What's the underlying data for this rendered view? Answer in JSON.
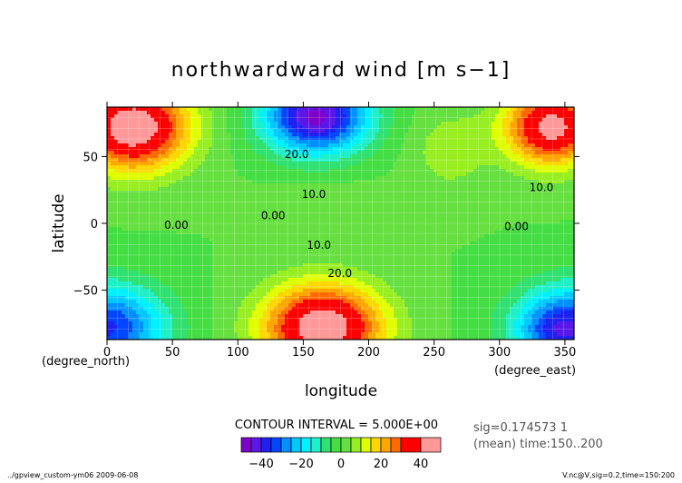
{
  "chart_data": {
    "type": "heatmap",
    "title": "northwardward wind [m s−1]",
    "xlabel": "longitude",
    "ylabel": "latitude",
    "x_unit": "(degree_east)",
    "y_unit": "(degree_north)",
    "xlim": [
      0,
      357
    ],
    "ylim": [
      -87,
      87
    ],
    "x_ticks": [
      0,
      50,
      100,
      150,
      200,
      250,
      300,
      350
    ],
    "y_ticks": [
      50,
      0,
      -50
    ],
    "contour_interval_label": "CONTOUR INTERVAL = 5.000E+00",
    "contour_labels": [
      {
        "text": "20.0",
        "lon": 145,
        "lat": 49
      },
      {
        "text": "10.0",
        "lon": 158,
        "lat": 19
      },
      {
        "text": "10.0",
        "lon": 332,
        "lat": 24
      },
      {
        "text": "0.00",
        "lon": 53,
        "lat": -4
      },
      {
        "text": "0.00",
        "lon": 127,
        "lat": 3
      },
      {
        "text": "0.00",
        "lon": 313,
        "lat": -5
      },
      {
        "text": "10.0",
        "lon": 162,
        "lat": -19
      },
      {
        "text": "20.0",
        "lon": 178,
        "lat": -40
      }
    ],
    "sources": [
      {
        "lon": 20,
        "lat": 72,
        "amp": 48,
        "sx": 42,
        "sy": 32
      },
      {
        "lon": 340,
        "lat": 72,
        "amp": 44,
        "sx": 35,
        "sy": 28
      },
      {
        "lon": 262,
        "lat": 55,
        "amp": 8,
        "sx": 30,
        "sy": 30
      },
      {
        "lon": 160,
        "lat": 80,
        "amp": -47,
        "sx": 40,
        "sy": 28
      },
      {
        "lon": 165,
        "lat": -78,
        "amp": 48,
        "sx": 45,
        "sy": 32
      },
      {
        "lon": 0,
        "lat": -78,
        "amp": -36,
        "sx": 45,
        "sy": 32
      },
      {
        "lon": 357,
        "lat": -78,
        "amp": -36,
        "sx": 45,
        "sy": 32
      },
      {
        "lon": 340,
        "lat": -80,
        "amp": -8,
        "sx": 25,
        "sy": 20
      },
      {
        "lon": 175,
        "lat": 18,
        "amp": 3,
        "sx": 60,
        "sy": 15
      }
    ],
    "color_bins": [
      {
        "min": -50,
        "max": -45,
        "color": "#7f00c8"
      },
      {
        "min": -45,
        "max": -40,
        "color": "#5a18e8"
      },
      {
        "min": -40,
        "max": -35,
        "color": "#2020f0"
      },
      {
        "min": -35,
        "max": -30,
        "color": "#0046ff"
      },
      {
        "min": -30,
        "max": -25,
        "color": "#0090ff"
      },
      {
        "min": -25,
        "max": -20,
        "color": "#00c8ff"
      },
      {
        "min": -20,
        "max": -15,
        "color": "#00f0ff"
      },
      {
        "min": -15,
        "max": -10,
        "color": "#20f0c8"
      },
      {
        "min": -10,
        "max": -5,
        "color": "#30e070"
      },
      {
        "min": -5,
        "max": 0,
        "color": "#44dd44"
      },
      {
        "min": 0,
        "max": 5,
        "color": "#66e040"
      },
      {
        "min": 5,
        "max": 10,
        "color": "#99ee22"
      },
      {
        "min": 10,
        "max": 15,
        "color": "#dfff00"
      },
      {
        "min": 15,
        "max": 20,
        "color": "#ffd700"
      },
      {
        "min": 20,
        "max": 25,
        "color": "#ffa500"
      },
      {
        "min": 25,
        "max": 30,
        "color": "#ff6a00"
      },
      {
        "min": 30,
        "max": 40,
        "color": "#ff0000"
      },
      {
        "min": 40,
        "max": 50,
        "color": "#ff9999"
      }
    ],
    "colorbar_ticks": [
      -40,
      -20,
      0,
      20,
      40
    ],
    "colorbar_range": [
      -50,
      50
    ]
  },
  "annotations": {
    "sig_line1": "sig=0.174573 1",
    "sig_line2": "(mean) time:150..200",
    "footer_left": "../gpview_custom-ym06  2009-06-08",
    "footer_right": "V.nc@V,sig=0.2,time=150:200"
  }
}
